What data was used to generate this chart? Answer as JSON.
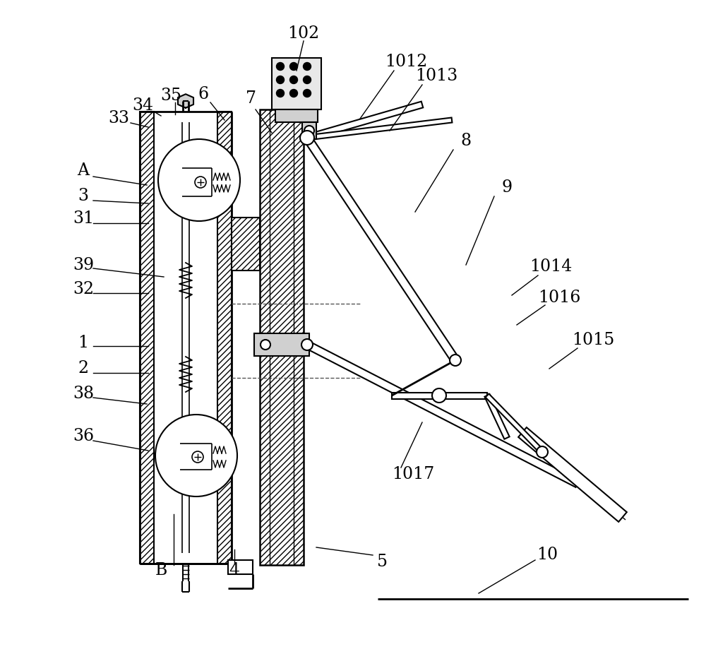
{
  "bg_color": "#ffffff",
  "line_color": "#000000",
  "figsize": [
    10.0,
    9.26
  ],
  "dpi": 100,
  "labels_with_lines": [
    [
      "102",
      430,
      48,
      430,
      58,
      420,
      100
    ],
    [
      "1012",
      575,
      88,
      558,
      100,
      510,
      168
    ],
    [
      "1013",
      618,
      108,
      598,
      120,
      552,
      185
    ],
    [
      "35",
      242,
      135,
      248,
      145,
      248,
      162
    ],
    [
      "34",
      202,
      150,
      218,
      158,
      228,
      164
    ],
    [
      "33",
      168,
      167,
      185,
      174,
      210,
      180
    ],
    [
      "6",
      288,
      133,
      298,
      145,
      318,
      170
    ],
    [
      "7",
      355,
      140,
      362,
      155,
      385,
      188
    ],
    [
      "8",
      660,
      200,
      642,
      212,
      588,
      300
    ],
    [
      "9",
      718,
      265,
      700,
      278,
      660,
      375
    ],
    [
      "A",
      118,
      242,
      132,
      250,
      208,
      262
    ],
    [
      "3",
      118,
      278,
      132,
      284,
      210,
      288
    ],
    [
      "31",
      118,
      310,
      132,
      316,
      210,
      316
    ],
    [
      "39",
      118,
      375,
      132,
      380,
      232,
      392
    ],
    [
      "32",
      118,
      410,
      132,
      415,
      210,
      415
    ],
    [
      "1014",
      780,
      378,
      762,
      390,
      725,
      418
    ],
    [
      "1016",
      792,
      422,
      772,
      432,
      732,
      460
    ],
    [
      "1",
      118,
      485,
      132,
      490,
      210,
      490
    ],
    [
      "2",
      118,
      522,
      132,
      528,
      210,
      528
    ],
    [
      "38",
      118,
      558,
      132,
      563,
      208,
      572
    ],
    [
      "1015",
      840,
      482,
      818,
      493,
      778,
      522
    ],
    [
      "36",
      118,
      618,
      132,
      624,
      210,
      638
    ],
    [
      "1017",
      585,
      672,
      568,
      662,
      598,
      598
    ],
    [
      "B",
      228,
      808,
      246,
      800,
      246,
      728
    ],
    [
      "4",
      332,
      808,
      332,
      798,
      332,
      778
    ],
    [
      "5",
      542,
      795,
      528,
      786,
      448,
      775
    ],
    [
      "10",
      775,
      785,
      758,
      793,
      678,
      840
    ]
  ]
}
